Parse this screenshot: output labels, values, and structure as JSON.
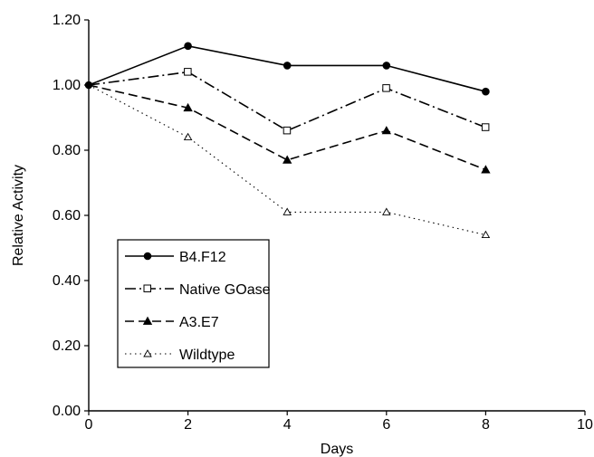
{
  "chart_data": {
    "type": "line",
    "title": "",
    "xlabel": "Days",
    "ylabel": "Relative Activity",
    "xlim": [
      0,
      10
    ],
    "ylim": [
      0,
      1.2
    ],
    "x_ticks": [
      "0",
      "2",
      "4",
      "6",
      "8",
      "10"
    ],
    "y_ticks": [
      "0.00",
      "0.20",
      "0.40",
      "0.60",
      "0.80",
      "1.00",
      "1.20"
    ],
    "x_tick_values": [
      0,
      2,
      4,
      6,
      8,
      10
    ],
    "y_tick_values": [
      0,
      0.2,
      0.4,
      0.6,
      0.8,
      1.0,
      1.2
    ],
    "grid": false,
    "legend_position": "bottom-left",
    "x": [
      0,
      2,
      4,
      6,
      8
    ],
    "series": [
      {
        "name": "B4.F12",
        "values": [
          1.0,
          1.12,
          1.06,
          1.06,
          0.98
        ],
        "marker": "filled-circle",
        "line_style": "solid",
        "color": "#000000"
      },
      {
        "name": "Native GOase",
        "values": [
          1.0,
          1.04,
          0.86,
          0.99,
          0.87
        ],
        "marker": "open-square",
        "line_style": "dash-dot",
        "color": "#000000"
      },
      {
        "name": "A3.E7",
        "values": [
          1.0,
          0.93,
          0.77,
          0.86,
          0.74
        ],
        "marker": "filled-triangle",
        "line_style": "dashed",
        "color": "#000000"
      },
      {
        "name": "Wildtype",
        "values": [
          1.0,
          0.84,
          0.61,
          0.61,
          0.54
        ],
        "marker": "open-triangle",
        "line_style": "dotted",
        "color": "#000000"
      }
    ]
  }
}
